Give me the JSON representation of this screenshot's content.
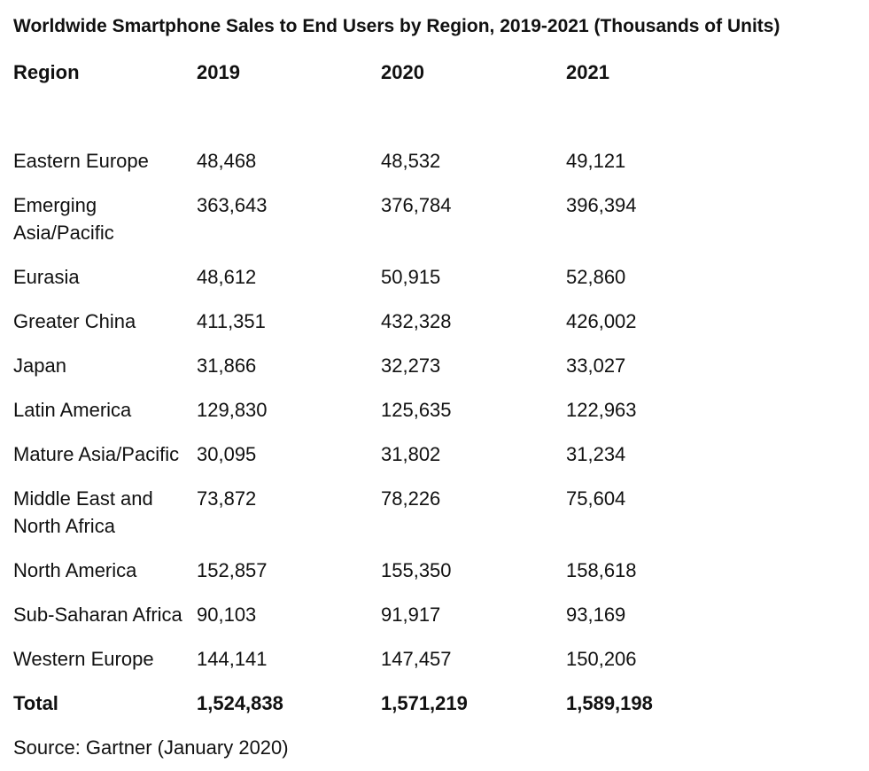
{
  "title": "Worldwide Smartphone Sales to End Users by Region, 2019-2021 (Thousands of Units)",
  "source": "Source: Gartner (January 2020)",
  "chart_data": {
    "type": "table",
    "title": "Worldwide Smartphone Sales to End Users by Region, 2019-2021 (Thousands of Units)",
    "columns": [
      "Region",
      "2019",
      "2020",
      "2021"
    ],
    "rows": [
      [
        "Eastern Europe",
        "48,468",
        "48,532",
        "49,121"
      ],
      [
        "Emerging Asia/Pacific",
        "363,643",
        "376,784",
        "396,394"
      ],
      [
        "Eurasia",
        "48,612",
        "50,915",
        "52,860"
      ],
      [
        "Greater China",
        "411,351",
        "432,328",
        "426,002"
      ],
      [
        "Japan",
        "31,866",
        "32,273",
        "33,027"
      ],
      [
        "Latin America",
        "129,830",
        "125,635",
        "122,963"
      ],
      [
        "Mature Asia/Pacific",
        "30,095",
        "31,802",
        "31,234"
      ],
      [
        "Middle East and North Africa",
        "73,872",
        "78,226",
        "75,604"
      ],
      [
        "North America",
        "152,857",
        "155,350",
        "158,618"
      ],
      [
        "Sub-Saharan Africa",
        "90,103",
        "91,917",
        "93,169"
      ],
      [
        "Western Europe",
        "144,141",
        "147,457",
        "150,206"
      ]
    ],
    "total": [
      "Total",
      "1,524,838",
      "1,571,219",
      "1,589,198"
    ]
  }
}
